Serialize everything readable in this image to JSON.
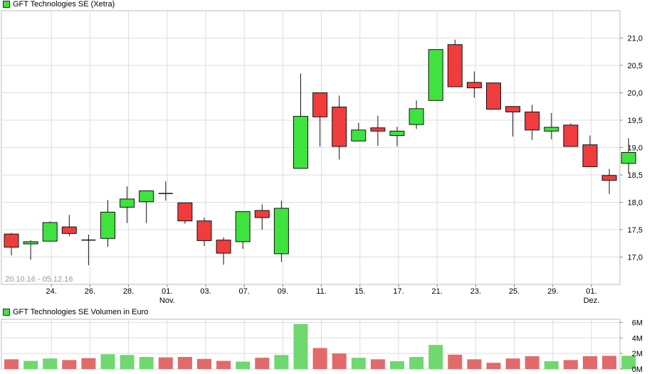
{
  "colors": {
    "up": "#3fe33f",
    "down": "#f03c3c",
    "vol_up": "#6fd86f",
    "vol_down": "#e26a6a",
    "grid": "#dddddd",
    "border": "#bbbbbb"
  },
  "price_legend": {
    "label": "GFT Technologies SE (Xetra)",
    "color": "#3fe33f"
  },
  "volume_legend": {
    "label": "GFT Technologies SE Volumen in Euro",
    "color": "#3fe33f"
  },
  "date_range": "20.10.16 - 05.12.16",
  "chart_data": [
    {
      "type": "candlestick",
      "title": "GFT Technologies SE (Xetra)",
      "ylim": [
        16.5,
        21.5
      ],
      "y_ticks": [
        "17,0",
        "17,5",
        "18,0",
        "18,5",
        "19,0",
        "19,5",
        "20,0",
        "20,5",
        "21,0"
      ],
      "x_tick_labels": [
        "24.",
        "26.",
        "28.",
        "01.",
        "03.",
        "07.",
        "09.",
        "11.",
        "15.",
        "17.",
        "21.",
        "23.",
        "25.",
        "29.",
        "01."
      ],
      "x_month_labels": [
        {
          "tick": "01.",
          "month": "Nov."
        },
        {
          "tick": "01.",
          "month": "Dez."
        }
      ],
      "grid": true,
      "candles": [
        {
          "date": "20.10.16",
          "open": 17.42,
          "high": 17.44,
          "low": 17.03,
          "close": 17.18
        },
        {
          "date": "21.10.16",
          "open": 17.24,
          "high": 17.31,
          "low": 16.95,
          "close": 17.28
        },
        {
          "date": "24.10.16",
          "open": 17.29,
          "high": 17.65,
          "low": 17.29,
          "close": 17.63
        },
        {
          "date": "25.10.16",
          "open": 17.55,
          "high": 17.77,
          "low": 17.38,
          "close": 17.43
        },
        {
          "date": "26.10.16",
          "open": 17.31,
          "high": 17.41,
          "low": 16.85,
          "close": 17.31
        },
        {
          "date": "27.10.16",
          "open": 17.34,
          "high": 18.04,
          "low": 17.19,
          "close": 17.82
        },
        {
          "date": "28.10.16",
          "open": 17.91,
          "high": 18.29,
          "low": 17.62,
          "close": 18.06
        },
        {
          "date": "31.10.16",
          "open": 18.01,
          "high": 18.22,
          "low": 17.62,
          "close": 18.21
        },
        {
          "date": "01.11.16",
          "open": 18.15,
          "high": 18.38,
          "low": 18.03,
          "close": 18.16
        },
        {
          "date": "02.11.16",
          "open": 17.99,
          "high": 17.99,
          "low": 17.61,
          "close": 17.66
        },
        {
          "date": "03.11.16",
          "open": 17.66,
          "high": 17.72,
          "low": 17.2,
          "close": 17.3
        },
        {
          "date": "04.11.16",
          "open": 17.31,
          "high": 17.36,
          "low": 16.86,
          "close": 17.07
        },
        {
          "date": "07.11.16",
          "open": 17.28,
          "high": 17.83,
          "low": 17.15,
          "close": 17.83
        },
        {
          "date": "08.11.16",
          "open": 17.85,
          "high": 17.96,
          "low": 17.5,
          "close": 17.72
        },
        {
          "date": "09.11.16",
          "open": 17.06,
          "high": 18.03,
          "low": 16.91,
          "close": 17.89
        },
        {
          "date": "10.11.16",
          "open": 18.62,
          "high": 20.35,
          "low": 18.62,
          "close": 19.57
        },
        {
          "date": "11.11.16",
          "open": 20.0,
          "high": 20.0,
          "low": 19.02,
          "close": 19.56
        },
        {
          "date": "14.11.16",
          "open": 19.74,
          "high": 19.95,
          "low": 18.78,
          "close": 19.02
        },
        {
          "date": "15.11.16",
          "open": 19.12,
          "high": 19.45,
          "low": 19.12,
          "close": 19.32
        },
        {
          "date": "16.11.16",
          "open": 19.36,
          "high": 19.58,
          "low": 19.03,
          "close": 19.3
        },
        {
          "date": "17.11.16",
          "open": 19.22,
          "high": 19.38,
          "low": 19.02,
          "close": 19.3
        },
        {
          "date": "18.11.16",
          "open": 19.42,
          "high": 19.86,
          "low": 19.34,
          "close": 19.71
        },
        {
          "date": "21.11.16",
          "open": 19.86,
          "high": 20.79,
          "low": 19.86,
          "close": 20.79
        },
        {
          "date": "22.11.16",
          "open": 20.88,
          "high": 20.97,
          "low": 20.11,
          "close": 20.11
        },
        {
          "date": "23.11.16",
          "open": 20.19,
          "high": 20.39,
          "low": 19.91,
          "close": 20.09
        },
        {
          "date": "24.11.16",
          "open": 20.18,
          "high": 20.19,
          "low": 19.7,
          "close": 19.7
        },
        {
          "date": "25.11.16",
          "open": 19.75,
          "high": 19.75,
          "low": 19.2,
          "close": 19.65
        },
        {
          "date": "28.11.16",
          "open": 19.65,
          "high": 19.78,
          "low": 19.14,
          "close": 19.32
        },
        {
          "date": "29.11.16",
          "open": 19.3,
          "high": 19.63,
          "low": 19.15,
          "close": 19.37
        },
        {
          "date": "30.11.16",
          "open": 19.41,
          "high": 19.44,
          "low": 19.02,
          "close": 19.02
        },
        {
          "date": "01.12.16",
          "open": 19.05,
          "high": 19.22,
          "low": 18.65,
          "close": 18.65
        },
        {
          "date": "02.12.16",
          "open": 18.49,
          "high": 18.61,
          "low": 18.15,
          "close": 18.4
        },
        {
          "date": "05.12.16",
          "open": 18.71,
          "high": 19.17,
          "low": 18.53,
          "close": 18.91
        }
      ]
    },
    {
      "type": "bar",
      "title": "GFT Technologies SE Volumen in Euro",
      "ylim": [
        0,
        6.4
      ],
      "y_ticks": [
        "0M",
        "2M",
        "4M",
        "6M"
      ],
      "grid": true,
      "values_millions": [
        1.25,
        1.05,
        1.35,
        1.15,
        1.4,
        1.9,
        1.8,
        1.55,
        1.5,
        1.55,
        1.3,
        1.05,
        0.95,
        1.45,
        1.8,
        5.8,
        2.7,
        2.0,
        1.45,
        1.25,
        1.0,
        1.55,
        3.1,
        1.85,
        1.25,
        0.8,
        1.35,
        1.65,
        1.0,
        1.15,
        1.65,
        1.7,
        1.7
      ],
      "direction": [
        "down",
        "up",
        "up",
        "down",
        "down",
        "up",
        "up",
        "up",
        "down",
        "down",
        "down",
        "down",
        "up",
        "down",
        "up",
        "up",
        "down",
        "down",
        "up",
        "down",
        "up",
        "up",
        "up",
        "down",
        "down",
        "down",
        "down",
        "down",
        "up",
        "down",
        "down",
        "down",
        "up"
      ]
    }
  ]
}
